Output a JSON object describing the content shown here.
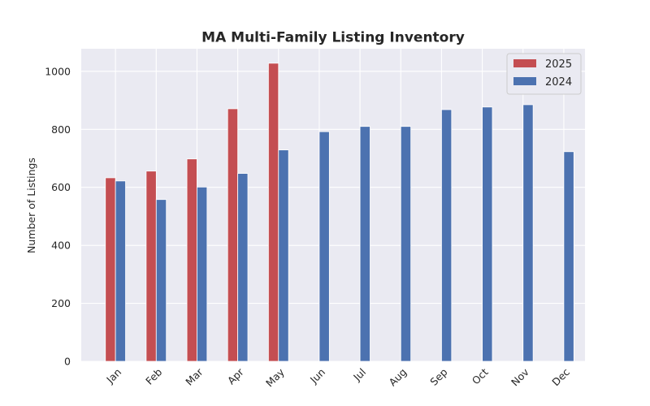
{
  "chart_data": {
    "type": "bar",
    "title": "MA Multi-Family Listing Inventory",
    "xlabel": "",
    "ylabel": "Number of Listings",
    "categories": [
      "Jan",
      "Feb",
      "Mar",
      "Apr",
      "May",
      "Jun",
      "Jul",
      "Aug",
      "Sep",
      "Oct",
      "Nov",
      "Dec"
    ],
    "series": [
      {
        "name": "2025",
        "color": "#c44e52",
        "values": [
          633,
          656,
          698,
          871,
          1028,
          null,
          null,
          null,
          null,
          null,
          null,
          null
        ]
      },
      {
        "name": "2024",
        "color": "#4c72b0",
        "values": [
          622,
          558,
          601,
          648,
          729,
          792,
          810,
          810,
          868,
          877,
          885,
          723
        ]
      }
    ],
    "ylim": [
      0,
      1078
    ],
    "yticks": [
      0,
      200,
      400,
      600,
      800,
      1000
    ],
    "grid": true,
    "legend_position": "top-right",
    "background": "#eaeaf2"
  }
}
